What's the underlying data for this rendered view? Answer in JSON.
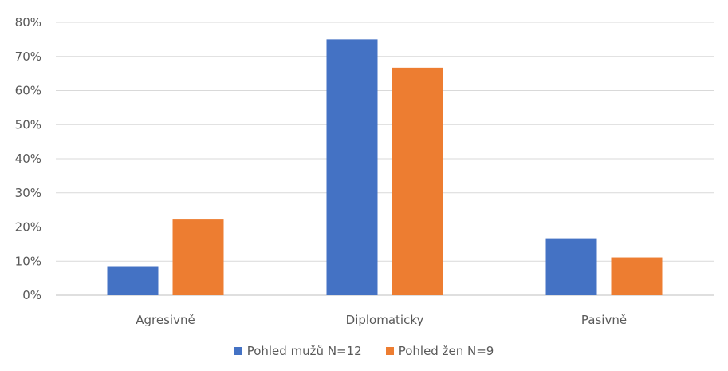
{
  "chart_data": {
    "type": "bar",
    "title": "",
    "xlabel": "",
    "ylabel": "",
    "categories": [
      "Agresivně",
      "Diplomaticky",
      "Pasivně"
    ],
    "series": [
      {
        "name": "Pohled mužů N=12",
        "color": "#4472C4",
        "values": [
          0.083,
          0.75,
          0.167
        ]
      },
      {
        "name": "Pohled žen N=9",
        "color": "#ED7D31",
        "values": [
          0.222,
          0.667,
          0.111
        ]
      }
    ],
    "ylim": [
      0,
      0.8
    ],
    "yticks": [
      "0%",
      "10%",
      "20%",
      "30%",
      "40%",
      "50%",
      "60%",
      "70%",
      "80%"
    ],
    "grid": true,
    "legend": "bottom"
  }
}
